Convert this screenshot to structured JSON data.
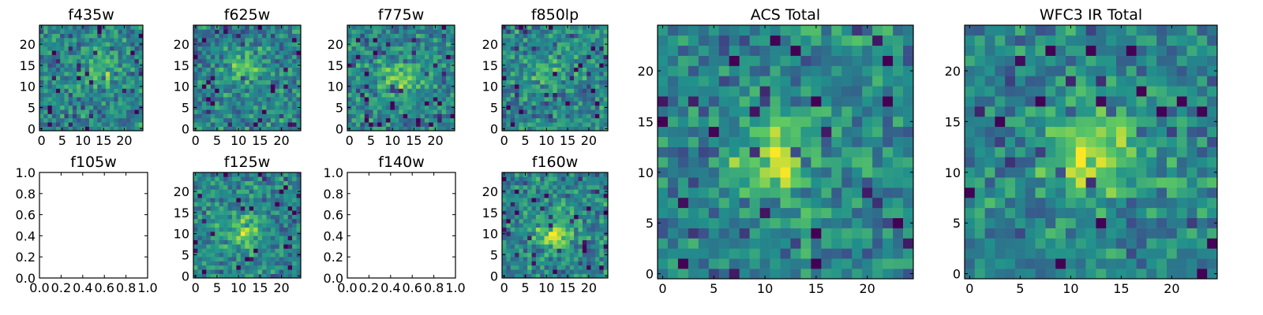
{
  "figure": {
    "panels": [
      {
        "id": "f435w",
        "title": "f435w",
        "kind": "image",
        "seed": 435,
        "blob": {
          "cx": 14,
          "cy": 14,
          "amp": 0.25
        },
        "xlim": [
          -0.5,
          24.5
        ],
        "ylim": [
          -0.5,
          24.5
        ],
        "xticks": [
          0,
          5,
          10,
          15,
          20
        ],
        "xticklabels": [
          "0",
          "5",
          "10",
          "15",
          "20"
        ],
        "yticks": [
          0,
          5,
          10,
          15,
          20
        ],
        "yticklabels": [
          "0",
          "5",
          "10",
          "15",
          "20"
        ]
      },
      {
        "id": "f625w",
        "title": "f625w",
        "kind": "image",
        "seed": 625,
        "blob": {
          "cx": 11,
          "cy": 14,
          "amp": 0.25
        },
        "xlim": [
          -0.5,
          24.5
        ],
        "ylim": [
          -0.5,
          24.5
        ],
        "xticks": [
          0,
          5,
          10,
          15,
          20
        ],
        "xticklabels": [
          "0",
          "5",
          "10",
          "15",
          "20"
        ],
        "yticks": [
          0,
          5,
          10,
          15,
          20
        ],
        "yticklabels": [
          "0",
          "5",
          "10",
          "15",
          "20"
        ]
      },
      {
        "id": "f775w",
        "title": "f775w",
        "kind": "image",
        "seed": 775,
        "blob": {
          "cx": 12,
          "cy": 12,
          "amp": 0.35
        },
        "xlim": [
          -0.5,
          24.5
        ],
        "ylim": [
          -0.5,
          24.5
        ],
        "xticks": [
          0,
          5,
          10,
          15,
          20
        ],
        "xticklabels": [
          "0",
          "5",
          "10",
          "15",
          "20"
        ],
        "yticks": [
          0,
          5,
          10,
          15,
          20
        ],
        "yticklabels": [
          "0",
          "5",
          "10",
          "15",
          "20"
        ]
      },
      {
        "id": "f850lp",
        "title": "f850lp",
        "kind": "image",
        "seed": 850,
        "blob": {
          "cx": 10,
          "cy": 14,
          "amp": 0.2
        },
        "xlim": [
          -0.5,
          24.5
        ],
        "ylim": [
          -0.5,
          24.5
        ],
        "xticks": [
          0,
          5,
          10,
          15,
          20
        ],
        "xticklabels": [
          "0",
          "5",
          "10",
          "15",
          "20"
        ],
        "yticks": [
          0,
          5,
          10,
          15,
          20
        ],
        "yticklabels": [
          "0",
          "5",
          "10",
          "15",
          "20"
        ]
      },
      {
        "id": "acs_total",
        "title": "ACS Total",
        "kind": "image",
        "seed": 1001,
        "blob": {
          "cx": 11,
          "cy": 12,
          "amp": 0.4
        },
        "xlim": [
          -0.5,
          24.5
        ],
        "ylim": [
          -0.5,
          24.5
        ],
        "xticks": [
          0,
          5,
          10,
          15,
          20
        ],
        "xticklabels": [
          "0",
          "5",
          "10",
          "15",
          "20"
        ],
        "yticks": [
          0,
          5,
          10,
          15,
          20
        ],
        "yticklabels": [
          "0",
          "5",
          "10",
          "15",
          "20"
        ]
      },
      {
        "id": "f105w",
        "title": "f105w",
        "kind": "empty",
        "xlim": [
          0,
          1
        ],
        "ylim": [
          0,
          1
        ],
        "xticks": [
          0,
          0.2,
          0.4,
          0.6,
          0.8,
          1.0
        ],
        "xticklabels": [
          "0.0",
          "0.2",
          "0.4",
          "0.6",
          "0.8",
          "1.0"
        ],
        "yticks": [
          0,
          0.2,
          0.4,
          0.6,
          0.8,
          1.0
        ],
        "yticklabels": [
          "0.0",
          "0.2",
          "0.4",
          "0.6",
          "0.8",
          "1.0"
        ]
      },
      {
        "id": "f125w",
        "title": "f125w",
        "kind": "image",
        "seed": 125,
        "blob": {
          "cx": 11,
          "cy": 11,
          "amp": 0.35
        },
        "xlim": [
          -0.5,
          24.5
        ],
        "ylim": [
          -0.5,
          24.5
        ],
        "xticks": [
          0,
          5,
          10,
          15,
          20
        ],
        "xticklabels": [
          "0",
          "5",
          "10",
          "15",
          "20"
        ],
        "yticks": [
          0,
          5,
          10,
          15,
          20
        ],
        "yticklabels": [
          "0",
          "5",
          "10",
          "15",
          "20"
        ]
      },
      {
        "id": "f140w",
        "title": "f140w",
        "kind": "empty",
        "xlim": [
          0,
          1
        ],
        "ylim": [
          0,
          1
        ],
        "xticks": [
          0,
          0.2,
          0.4,
          0.6,
          0.8,
          1.0
        ],
        "xticklabels": [
          "0.0",
          "0.2",
          "0.4",
          "0.6",
          "0.8",
          "1.0"
        ],
        "yticks": [
          0,
          0.2,
          0.4,
          0.6,
          0.8,
          1.0
        ],
        "yticklabels": [
          "0.0",
          "0.2",
          "0.4",
          "0.6",
          "0.8",
          "1.0"
        ]
      },
      {
        "id": "f160w",
        "title": "f160w",
        "kind": "image",
        "seed": 160,
        "blob": {
          "cx": 12,
          "cy": 10,
          "amp": 0.4
        },
        "xlim": [
          -0.5,
          24.5
        ],
        "ylim": [
          -0.5,
          24.5
        ],
        "xticks": [
          0,
          5,
          10,
          15,
          20
        ],
        "xticklabels": [
          "0",
          "5",
          "10",
          "15",
          "20"
        ],
        "yticks": [
          0,
          5,
          10,
          15,
          20
        ],
        "yticklabels": [
          "0",
          "5",
          "10",
          "15",
          "20"
        ]
      },
      {
        "id": "wfc3_ir_total",
        "title": "WFC3 IR Total",
        "kind": "image",
        "seed": 2002,
        "blob": {
          "cx": 12,
          "cy": 12,
          "amp": 0.45
        },
        "xlim": [
          -0.5,
          24.5
        ],
        "ylim": [
          -0.5,
          24.5
        ],
        "xticks": [
          0,
          5,
          10,
          15,
          20
        ],
        "xticklabels": [
          "0",
          "5",
          "10",
          "15",
          "20"
        ],
        "yticks": [
          0,
          5,
          10,
          15,
          20
        ],
        "yticklabels": [
          "0",
          "5",
          "10",
          "15",
          "20"
        ]
      }
    ]
  },
  "chart_data": [
    {
      "type": "heatmap",
      "title": "f435w",
      "grid": [
        25,
        25
      ],
      "colormap": "viridis",
      "xlim": [
        -0.5,
        24.5
      ],
      "ylim": [
        -0.5,
        24.5
      ]
    },
    {
      "type": "heatmap",
      "title": "f625w",
      "grid": [
        25,
        25
      ],
      "colormap": "viridis",
      "xlim": [
        -0.5,
        24.5
      ],
      "ylim": [
        -0.5,
        24.5
      ]
    },
    {
      "type": "heatmap",
      "title": "f775w",
      "grid": [
        25,
        25
      ],
      "colormap": "viridis",
      "xlim": [
        -0.5,
        24.5
      ],
      "ylim": [
        -0.5,
        24.5
      ]
    },
    {
      "type": "heatmap",
      "title": "f850lp",
      "grid": [
        25,
        25
      ],
      "colormap": "viridis",
      "xlim": [
        -0.5,
        24.5
      ],
      "ylim": [
        -0.5,
        24.5
      ]
    },
    {
      "type": "heatmap",
      "title": "f105w",
      "grid": [
        0,
        0
      ],
      "note": "empty axes",
      "xlim": [
        0,
        1
      ],
      "ylim": [
        0,
        1
      ]
    },
    {
      "type": "heatmap",
      "title": "f125w",
      "grid": [
        25,
        25
      ],
      "colormap": "viridis",
      "xlim": [
        -0.5,
        24.5
      ],
      "ylim": [
        -0.5,
        24.5
      ]
    },
    {
      "type": "heatmap",
      "title": "f140w",
      "grid": [
        0,
        0
      ],
      "note": "empty axes",
      "xlim": [
        0,
        1
      ],
      "ylim": [
        0,
        1
      ]
    },
    {
      "type": "heatmap",
      "title": "f160w",
      "grid": [
        25,
        25
      ],
      "colormap": "viridis",
      "xlim": [
        -0.5,
        24.5
      ],
      "ylim": [
        -0.5,
        24.5
      ]
    },
    {
      "type": "heatmap",
      "title": "ACS Total",
      "grid": [
        25,
        25
      ],
      "colormap": "viridis",
      "xlim": [
        -0.5,
        24.5
      ],
      "ylim": [
        -0.5,
        24.5
      ]
    },
    {
      "type": "heatmap",
      "title": "WFC3 IR Total",
      "grid": [
        25,
        25
      ],
      "colormap": "viridis",
      "xlim": [
        -0.5,
        24.5
      ],
      "ylim": [
        -0.5,
        24.5
      ]
    }
  ],
  "colors": {
    "viridis": [
      "#440154",
      "#3b528b",
      "#21918c",
      "#5ec962",
      "#fde725"
    ]
  }
}
